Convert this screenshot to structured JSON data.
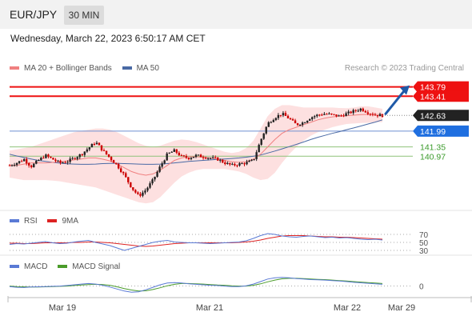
{
  "header": {
    "symbol": "EUR/JPY",
    "timeframe": "30 MIN"
  },
  "timestamp": "Wednesday, March 22, 2023 6:50:17 AM CET",
  "credit": "Research © 2023 Trading Central",
  "colors": {
    "price_up": "#222222",
    "price_down": "#cc0000",
    "ma20": "#f08080",
    "bollinger_fill": "#fde0e0",
    "ma50": "#4a6aa5",
    "resistance": "#ee1111",
    "pivot": "#222222",
    "support_blue": "#6f8fd0",
    "support_green": "#8fc27a",
    "arrow": "#1f5aa8",
    "rsi": "#5a7ad5",
    "rsi_9ma": "#dd2222",
    "macd": "#5a7ad5",
    "macd_signal": "#4b9c2b"
  },
  "chart_data": [
    {
      "type": "candlestick",
      "panel": "price",
      "legend": [
        {
          "label": "MA 20 + Bollinger Bands",
          "color": "#f08080"
        },
        {
          "label": "MA 50",
          "color": "#4a6aa5"
        }
      ],
      "x_ticks": [
        "Mar 19",
        "Mar 21",
        "Mar 22",
        "Mar 29"
      ],
      "ylim": [
        138.8,
        144.2
      ],
      "levels": [
        {
          "value": 143.79,
          "label": "143.79",
          "role": "resistance",
          "color": "#ee1111"
        },
        {
          "value": 143.41,
          "label": "143.41",
          "role": "resistance",
          "color": "#ee1111"
        },
        {
          "value": 142.63,
          "label": "142.63",
          "role": "pivot",
          "color": "#222222"
        },
        {
          "value": 141.99,
          "label": "141.99",
          "role": "support",
          "color": "#6f8fd0"
        },
        {
          "value": 141.35,
          "label": "141.35",
          "role": "support",
          "color": "#8fc27a"
        },
        {
          "value": 140.97,
          "label": "140.97",
          "role": "support",
          "color": "#8fc27a"
        }
      ],
      "close_path": [
        140.6,
        140.7,
        140.85,
        140.55,
        140.8,
        141.0,
        140.85,
        140.7,
        140.75,
        140.9,
        141.05,
        141.3,
        141.55,
        141.2,
        140.9,
        140.6,
        140.2,
        139.7,
        139.35,
        139.6,
        140.0,
        140.55,
        141.05,
        141.2,
        140.95,
        140.9,
        141.0,
        140.95,
        140.9,
        140.85,
        140.7,
        140.6,
        140.65,
        140.7,
        140.8,
        141.6,
        142.3,
        142.55,
        142.7,
        142.5,
        142.25,
        142.35,
        142.55,
        142.65,
        142.7,
        142.65,
        142.6,
        142.7,
        142.8,
        142.9,
        142.75,
        142.65,
        142.63
      ],
      "ma20": [
        140.6,
        140.6,
        140.65,
        140.7,
        140.7,
        140.7,
        140.72,
        140.74,
        140.78,
        140.82,
        140.86,
        140.9,
        140.9,
        140.85,
        140.78,
        140.65,
        140.5,
        140.35,
        140.25,
        140.2,
        140.25,
        140.4,
        140.6,
        140.8,
        140.9,
        140.95,
        140.95,
        140.93,
        140.9,
        140.85,
        140.8,
        140.75,
        140.72,
        140.75,
        140.85,
        141.05,
        141.35,
        141.65,
        141.9,
        142.05,
        142.15,
        142.25,
        142.35,
        142.45,
        142.52,
        142.57,
        142.6,
        142.62,
        142.64,
        142.66,
        142.67,
        142.67,
        142.66
      ],
      "ma50": [
        141.05,
        140.98,
        140.92,
        140.86,
        140.8,
        140.76,
        140.72,
        140.69,
        140.66,
        140.65,
        140.64,
        140.64,
        140.65,
        140.67,
        140.68,
        140.68,
        140.67,
        140.66,
        140.65,
        140.64,
        140.64,
        140.65,
        140.67,
        140.7,
        140.73,
        140.76,
        140.78,
        140.8,
        140.82,
        140.84,
        140.86,
        140.88,
        140.9,
        140.93,
        140.97,
        141.02,
        141.1,
        141.18,
        141.27,
        141.36,
        141.45,
        141.55,
        141.65,
        141.74,
        141.82,
        141.9,
        141.97,
        142.05,
        142.12,
        142.2,
        142.28,
        142.36,
        142.45
      ],
      "bollinger_upper": [
        141.2,
        141.25,
        141.3,
        141.35,
        141.45,
        141.55,
        141.65,
        141.75,
        141.85,
        141.95,
        142.0,
        142.05,
        142.1,
        142.1,
        142.05,
        141.95,
        141.8,
        141.65,
        141.5,
        141.4,
        141.35,
        141.4,
        141.5,
        141.6,
        141.65,
        141.62,
        141.55,
        141.45,
        141.35,
        141.25,
        141.15,
        141.1,
        141.15,
        141.3,
        141.6,
        142.1,
        142.6,
        142.9,
        143.05,
        143.05,
        143.0,
        142.95,
        142.95,
        142.95,
        142.95,
        142.95,
        142.93,
        142.92,
        142.95,
        143.0,
        143.0,
        142.95,
        142.9
      ],
      "bollinger_lower": [
        140.1,
        140.05,
        140.0,
        140.0,
        140.0,
        140.0,
        139.98,
        139.95,
        139.9,
        139.85,
        139.8,
        139.75,
        139.7,
        139.6,
        139.5,
        139.4,
        139.3,
        139.2,
        139.1,
        139.05,
        139.1,
        139.3,
        139.6,
        139.9,
        140.15,
        140.3,
        140.4,
        140.45,
        140.45,
        140.45,
        140.45,
        140.4,
        140.35,
        140.25,
        140.1,
        140.0,
        140.05,
        140.3,
        140.7,
        141.05,
        141.35,
        141.6,
        141.8,
        141.95,
        142.05,
        142.15,
        142.22,
        142.28,
        142.3,
        142.32,
        142.33,
        142.35,
        142.36
      ],
      "projection": {
        "from": 142.63,
        "to": 143.79
      }
    },
    {
      "type": "line",
      "panel": "RSI",
      "series": [
        {
          "name": "RSI",
          "color": "#5a7ad5",
          "values": [
            45,
            47,
            46,
            48,
            50,
            52,
            49,
            47,
            48,
            51,
            53,
            55,
            50,
            46,
            42,
            36,
            30,
            35,
            40,
            45,
            50,
            53,
            55,
            51,
            50,
            49,
            49,
            48,
            47,
            48,
            49,
            50,
            51,
            54,
            60,
            67,
            72,
            70,
            66,
            64,
            63,
            65,
            66,
            64,
            62,
            63,
            61,
            62,
            60,
            58,
            57,
            58,
            56
          ]
        },
        {
          "name": "9MA",
          "color": "#dd2222",
          "values": [
            48,
            48,
            47,
            47,
            48,
            49,
            49,
            49,
            49,
            50,
            50,
            51,
            51,
            50,
            49,
            47,
            45,
            43,
            41,
            40,
            41,
            43,
            45,
            47,
            48,
            49,
            49,
            49,
            49,
            49,
            49,
            49,
            50,
            51,
            53,
            56,
            60,
            63,
            66,
            67,
            67,
            67,
            66,
            65,
            64,
            64,
            63,
            63,
            62,
            61,
            60,
            59,
            58
          ]
        }
      ],
      "ylim": [
        20,
        80
      ],
      "y_ticks": [
        70,
        50,
        30
      ]
    },
    {
      "type": "line",
      "panel": "MACD",
      "series": [
        {
          "name": "MACD",
          "color": "#5a7ad5",
          "values": [
            -0.02,
            -0.05,
            -0.06,
            -0.04,
            -0.03,
            -0.02,
            -0.01,
            0.0,
            0.02,
            0.05,
            0.08,
            0.1,
            0.08,
            0.03,
            -0.04,
            -0.12,
            -0.2,
            -0.25,
            -0.23,
            -0.15,
            -0.05,
            0.05,
            0.12,
            0.14,
            0.12,
            0.09,
            0.07,
            0.05,
            0.03,
            0.02,
            0.0,
            -0.02,
            -0.02,
            0.01,
            0.08,
            0.18,
            0.28,
            0.33,
            0.35,
            0.33,
            0.3,
            0.28,
            0.26,
            0.25,
            0.24,
            0.22,
            0.2,
            0.18,
            0.15,
            0.13,
            0.11,
            0.09,
            0.07
          ]
        },
        {
          "name": "MACD Signal",
          "color": "#4b9c2b",
          "values": [
            0.0,
            -0.02,
            -0.03,
            -0.04,
            -0.04,
            -0.03,
            -0.02,
            -0.01,
            0.0,
            0.02,
            0.04,
            0.06,
            0.07,
            0.06,
            0.03,
            -0.03,
            -0.1,
            -0.16,
            -0.2,
            -0.19,
            -0.14,
            -0.07,
            0.01,
            0.07,
            0.1,
            0.1,
            0.09,
            0.08,
            0.06,
            0.04,
            0.03,
            0.01,
            0.0,
            0.0,
            0.03,
            0.09,
            0.17,
            0.24,
            0.29,
            0.31,
            0.31,
            0.3,
            0.28,
            0.27,
            0.26,
            0.24,
            0.22,
            0.2,
            0.18,
            0.16,
            0.14,
            0.12,
            0.1
          ]
        }
      ],
      "ylim": [
        -0.4,
        0.5
      ],
      "y_ticks": [
        0
      ]
    }
  ]
}
